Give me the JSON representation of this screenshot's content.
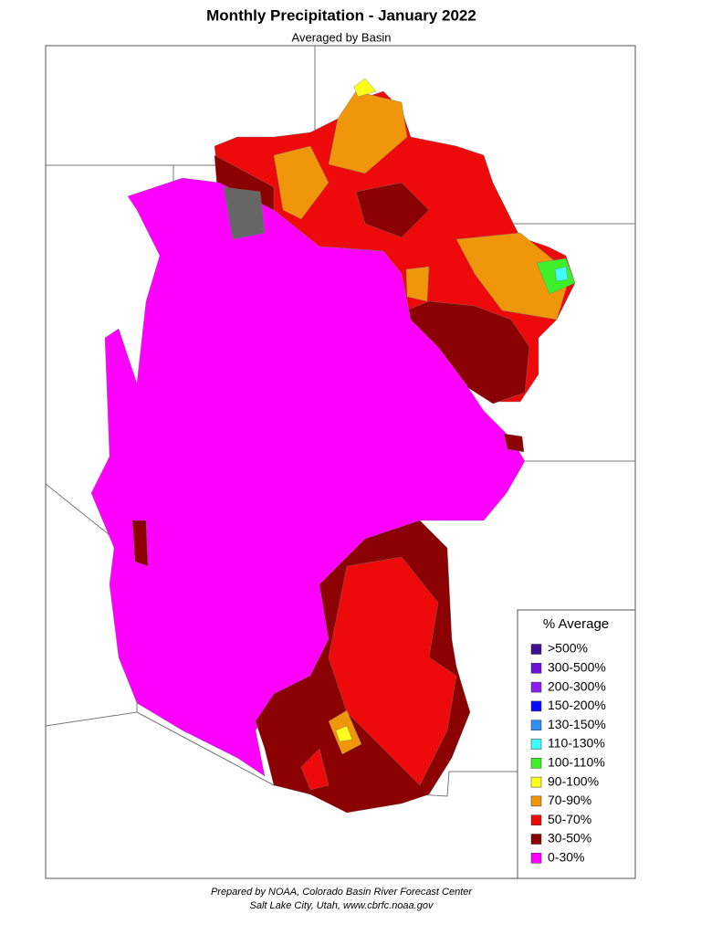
{
  "title": "Monthly Precipitation - January 2022",
  "subtitle": "Averaged by Basin",
  "legend": {
    "title": "% Average",
    "items": [
      {
        "label": ">500%",
        "color": "#3f0f8f"
      },
      {
        "label": "300-500%",
        "color": "#6a12d6"
      },
      {
        "label": "200-300%",
        "color": "#8a1ff5"
      },
      {
        "label": "150-200%",
        "color": "#0a0aff"
      },
      {
        "label": "130-150%",
        "color": "#2e8ff0"
      },
      {
        "label": "110-130%",
        "color": "#40fbff"
      },
      {
        "label": "100-110%",
        "color": "#3ef02a"
      },
      {
        "label": "90-100%",
        "color": "#ffff1a"
      },
      {
        "label": "70-90%",
        "color": "#f0960a"
      },
      {
        "label": "50-70%",
        "color": "#ee0a0a"
      },
      {
        "label": "30-50%",
        "color": "#8b0000"
      },
      {
        "label": "0-30%",
        "color": "#ff00ff"
      }
    ]
  },
  "footer": {
    "line1": "Prepared by NOAA, Colorado Basin River Forecast Center",
    "line2": "Salt Lake City, Utah, www.cbrfc.noaa.gov"
  }
}
